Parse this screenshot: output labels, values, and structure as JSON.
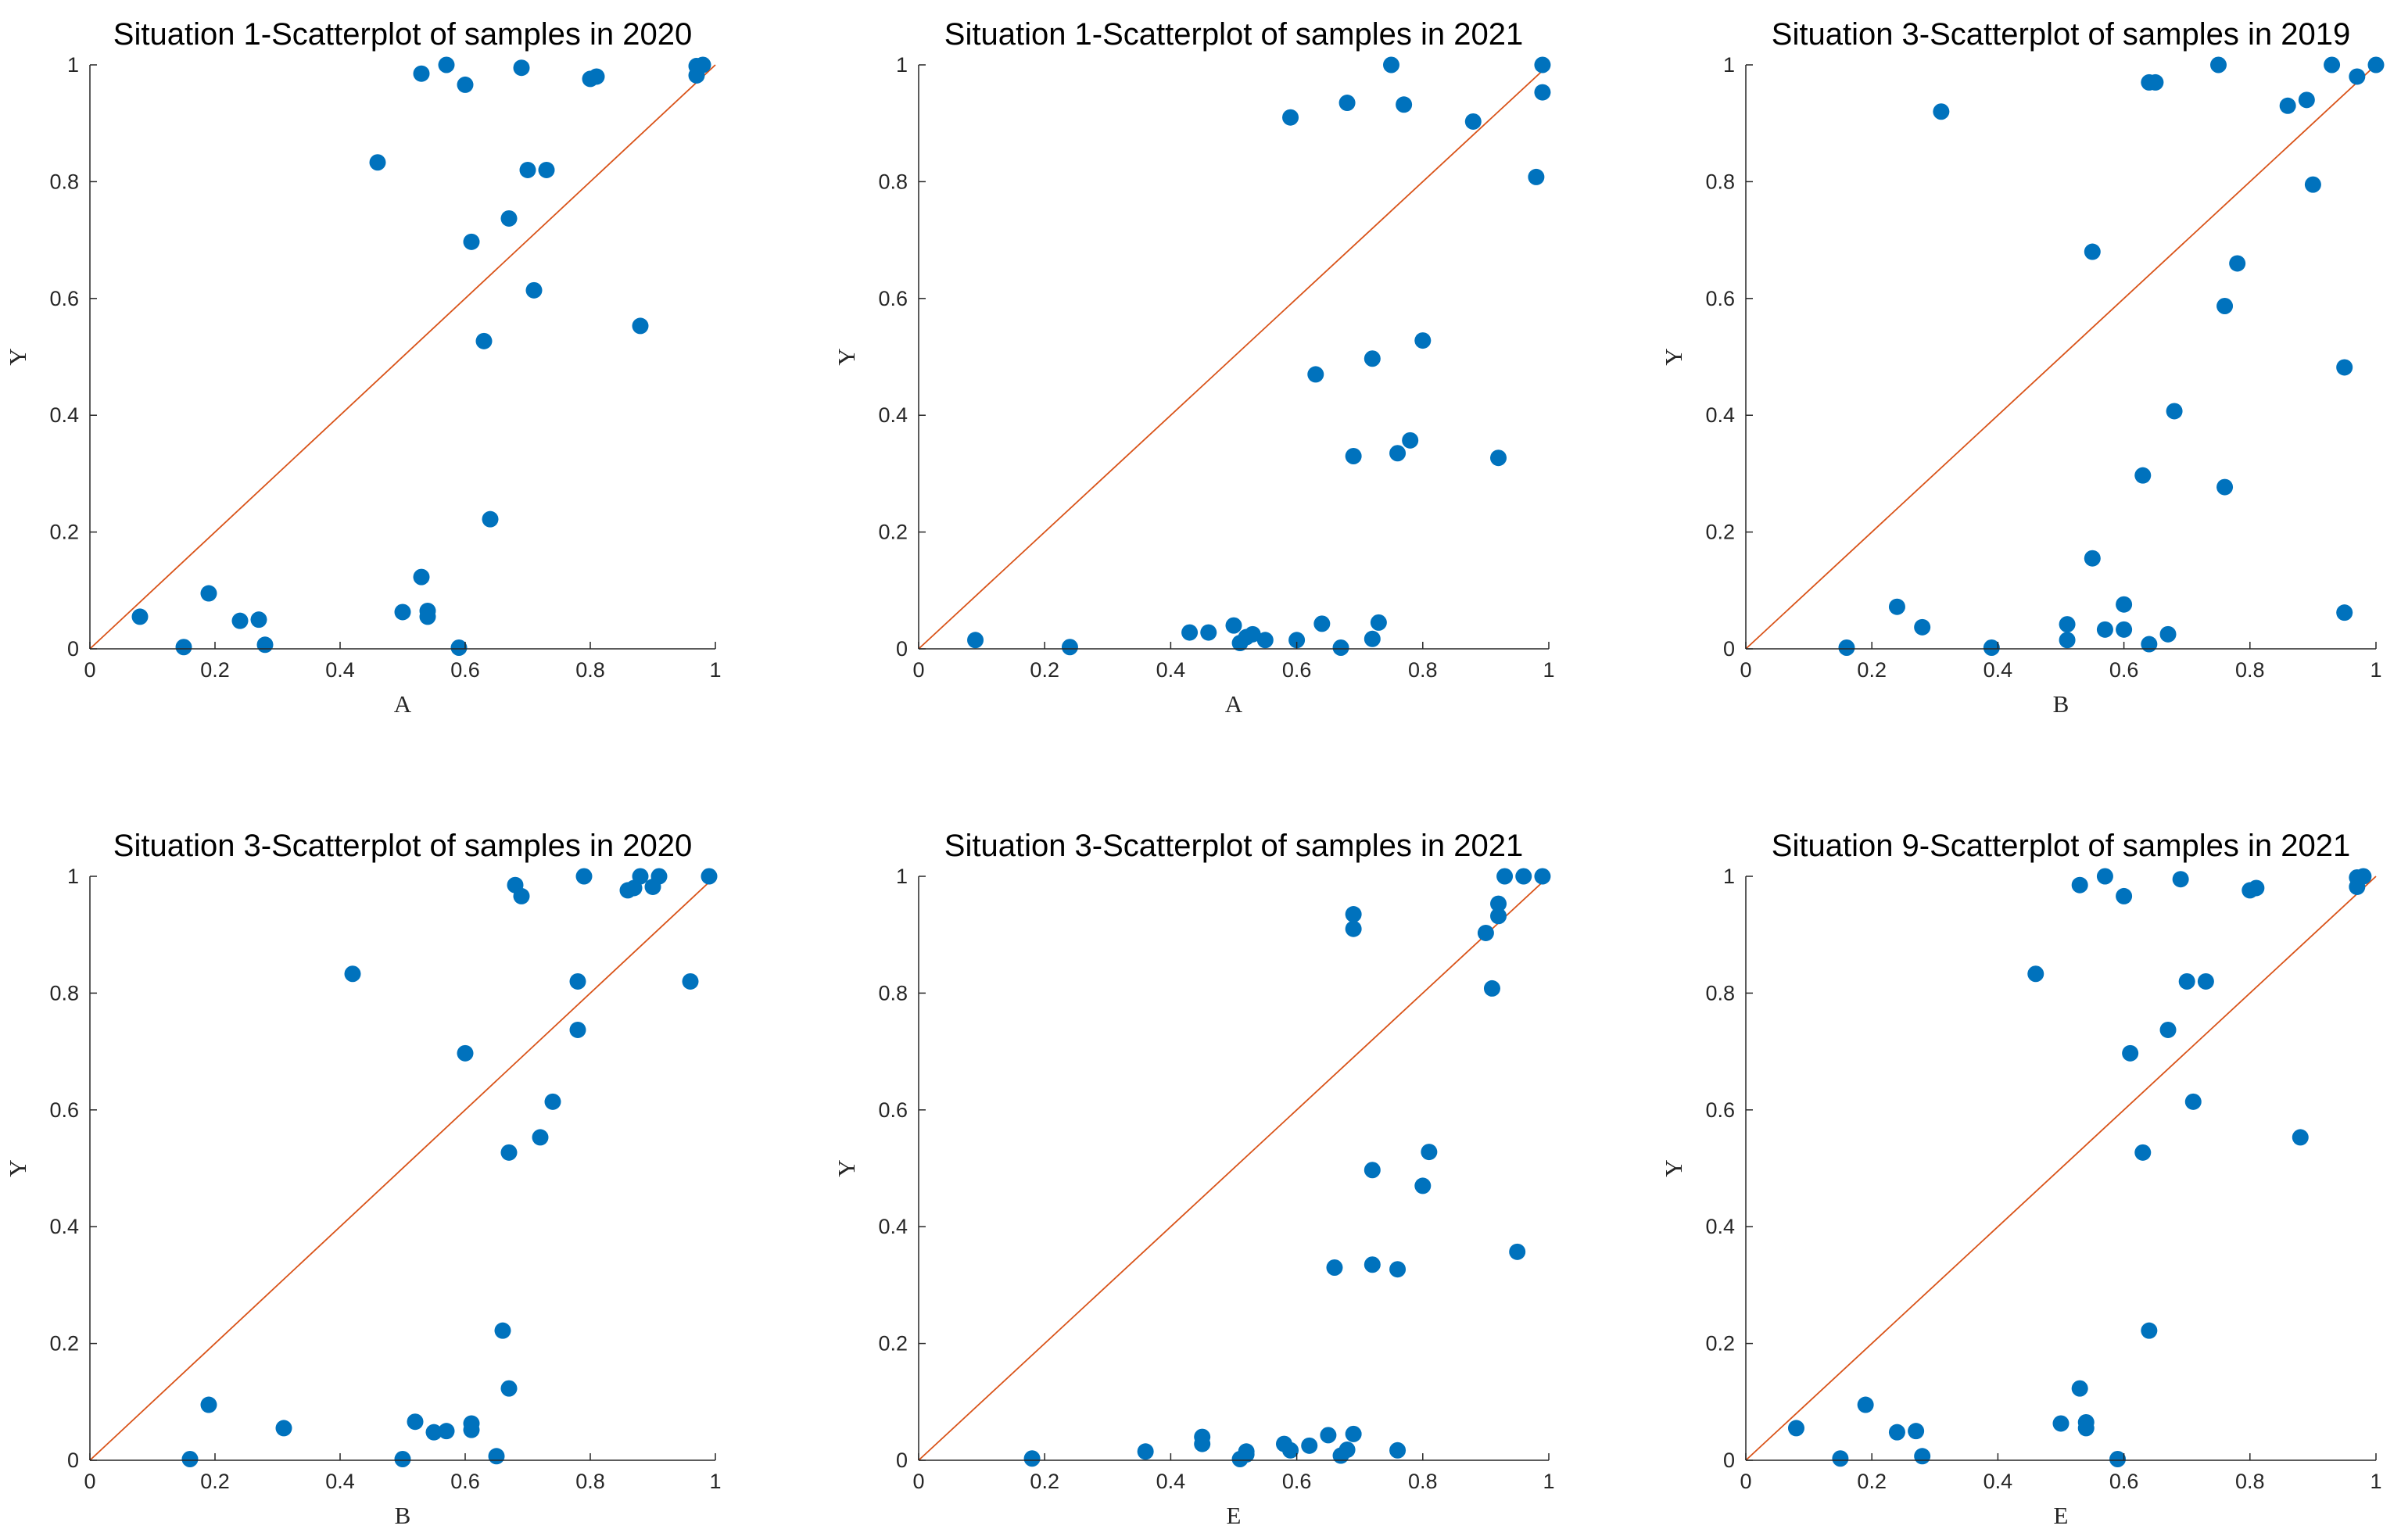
{
  "colors": {
    "points": "#0072BD",
    "reference_line": "#D95319",
    "axes": "#262626"
  },
  "chart_data": [
    {
      "type": "scatter",
      "title": "Situation 1-Scatterplot of samples in 2020",
      "xlabel": "A",
      "ylabel": "Y",
      "xlim": [
        0,
        1
      ],
      "ylim": [
        0,
        1
      ],
      "xticks": [
        "0",
        "0.2",
        "0.4",
        "0.6",
        "0.8",
        "1"
      ],
      "yticks": [
        "0",
        "0.2",
        "0.4",
        "0.6",
        "0.8",
        "1"
      ],
      "grid": false,
      "reference_line": "y = x",
      "points": [
        [
          0.08,
          0.055
        ],
        [
          0.15,
          0.003
        ],
        [
          0.19,
          0.095
        ],
        [
          0.24,
          0.048
        ],
        [
          0.27,
          0.05
        ],
        [
          0.28,
          0.007
        ],
        [
          0.46,
          0.833
        ],
        [
          0.5,
          0.063
        ],
        [
          0.53,
          0.985
        ],
        [
          0.53,
          0.123
        ],
        [
          0.54,
          0.065
        ],
        [
          0.54,
          0.055
        ],
        [
          0.57,
          1.0
        ],
        [
          0.59,
          0.002
        ],
        [
          0.6,
          0.966
        ],
        [
          0.61,
          0.697
        ],
        [
          0.63,
          0.527
        ],
        [
          0.64,
          0.222
        ],
        [
          0.67,
          0.737
        ],
        [
          0.69,
          0.995
        ],
        [
          0.7,
          0.82
        ],
        [
          0.71,
          0.614
        ],
        [
          0.73,
          0.82
        ],
        [
          0.8,
          0.976
        ],
        [
          0.81,
          0.98
        ],
        [
          0.88,
          0.553
        ],
        [
          0.97,
          0.982
        ],
        [
          0.97,
          0.998
        ],
        [
          0.98,
          1.0
        ]
      ]
    },
    {
      "type": "scatter",
      "title": "Situation 1-Scatterplot of samples in 2021",
      "xlabel": "A",
      "ylabel": "Y",
      "xlim": [
        0,
        1
      ],
      "ylim": [
        0,
        1
      ],
      "xticks": [
        "0",
        "0.2",
        "0.4",
        "0.6",
        "0.8",
        "1"
      ],
      "yticks": [
        "0",
        "0.2",
        "0.4",
        "0.6",
        "0.8",
        "1"
      ],
      "grid": false,
      "reference_line": "y = x",
      "points": [
        [
          0.09,
          0.015
        ],
        [
          0.24,
          0.003
        ],
        [
          0.43,
          0.028
        ],
        [
          0.46,
          0.028
        ],
        [
          0.5,
          0.04
        ],
        [
          0.51,
          0.01
        ],
        [
          0.52,
          0.02
        ],
        [
          0.53,
          0.025
        ],
        [
          0.55,
          0.015
        ],
        [
          0.59,
          0.91
        ],
        [
          0.6,
          0.015
        ],
        [
          0.63,
          0.47
        ],
        [
          0.64,
          0.043
        ],
        [
          0.67,
          0.002
        ],
        [
          0.68,
          0.935
        ],
        [
          0.69,
          0.33
        ],
        [
          0.72,
          0.497
        ],
        [
          0.72,
          0.017
        ],
        [
          0.73,
          0.045
        ],
        [
          0.75,
          1.0
        ],
        [
          0.76,
          0.335
        ],
        [
          0.77,
          0.932
        ],
        [
          0.78,
          0.357
        ],
        [
          0.8,
          0.528
        ],
        [
          0.88,
          0.903
        ],
        [
          0.92,
          0.327
        ],
        [
          0.98,
          0.808
        ],
        [
          0.99,
          1.0
        ],
        [
          0.99,
          0.953
        ]
      ]
    },
    {
      "type": "scatter",
      "title": "Situation 3-Scatterplot of samples in 2019",
      "xlabel": "B",
      "ylabel": "Y",
      "xlim": [
        0,
        1
      ],
      "ylim": [
        0,
        1
      ],
      "xticks": [
        "0",
        "0.2",
        "0.4",
        "0.6",
        "0.8",
        "1"
      ],
      "yticks": [
        "0",
        "0.2",
        "0.4",
        "0.6",
        "0.8",
        "1"
      ],
      "grid": false,
      "reference_line": "y = x",
      "points": [
        [
          0.16,
          0.002
        ],
        [
          0.24,
          0.072
        ],
        [
          0.28,
          0.037
        ],
        [
          0.31,
          0.92
        ],
        [
          0.39,
          0.002
        ],
        [
          0.51,
          0.015
        ],
        [
          0.51,
          0.042
        ],
        [
          0.55,
          0.155
        ],
        [
          0.55,
          0.68
        ],
        [
          0.57,
          0.033
        ],
        [
          0.6,
          0.076
        ],
        [
          0.6,
          0.033
        ],
        [
          0.63,
          0.297
        ],
        [
          0.64,
          0.97
        ],
        [
          0.64,
          0.008
        ],
        [
          0.65,
          0.97
        ],
        [
          0.67,
          0.025
        ],
        [
          0.68,
          0.407
        ],
        [
          0.75,
          1.0
        ],
        [
          0.76,
          0.277
        ],
        [
          0.76,
          0.587
        ],
        [
          0.78,
          0.66
        ],
        [
          0.86,
          0.93
        ],
        [
          0.89,
          0.94
        ],
        [
          0.9,
          0.795
        ],
        [
          0.93,
          1.0
        ],
        [
          0.95,
          0.482
        ],
        [
          0.95,
          0.062
        ],
        [
          0.97,
          0.98
        ],
        [
          1.0,
          1.0
        ]
      ]
    },
    {
      "type": "scatter",
      "title": "Situation 3-Scatterplot of samples in 2020",
      "xlabel": "B",
      "ylabel": "Y",
      "xlim": [
        0,
        1
      ],
      "ylim": [
        0,
        1
      ],
      "xticks": [
        "0",
        "0.2",
        "0.4",
        "0.6",
        "0.8",
        "1"
      ],
      "yticks": [
        "0",
        "0.2",
        "0.4",
        "0.6",
        "0.8",
        "1"
      ],
      "grid": false,
      "reference_line": "y = x",
      "points": [
        [
          0.16,
          0.002
        ],
        [
          0.19,
          0.095
        ],
        [
          0.31,
          0.055
        ],
        [
          0.42,
          0.833
        ],
        [
          0.5,
          0.002
        ],
        [
          0.52,
          0.066
        ],
        [
          0.55,
          0.048
        ],
        [
          0.57,
          0.05
        ],
        [
          0.6,
          0.697
        ],
        [
          0.61,
          0.063
        ],
        [
          0.61,
          0.052
        ],
        [
          0.65,
          0.007
        ],
        [
          0.66,
          0.222
        ],
        [
          0.67,
          0.123
        ],
        [
          0.67,
          0.527
        ],
        [
          0.68,
          0.985
        ],
        [
          0.69,
          0.966
        ],
        [
          0.72,
          0.553
        ],
        [
          0.74,
          0.614
        ],
        [
          0.78,
          0.82
        ],
        [
          0.78,
          0.737
        ],
        [
          0.79,
          1.0
        ],
        [
          0.86,
          0.976
        ],
        [
          0.87,
          0.98
        ],
        [
          0.88,
          1.0
        ],
        [
          0.9,
          0.982
        ],
        [
          0.91,
          1.0
        ],
        [
          0.96,
          0.82
        ],
        [
          0.99,
          1.0
        ]
      ]
    },
    {
      "type": "scatter",
      "title": "Situation 3-Scatterplot of samples in 2021",
      "xlabel": "E",
      "ylabel": "Y",
      "xlim": [
        0,
        1
      ],
      "ylim": [
        0,
        1
      ],
      "xticks": [
        "0",
        "0.2",
        "0.4",
        "0.6",
        "0.8",
        "1"
      ],
      "yticks": [
        "0",
        "0.2",
        "0.4",
        "0.6",
        "0.8",
        "1"
      ],
      "grid": false,
      "reference_line": "y = x",
      "points": [
        [
          0.18,
          0.003
        ],
        [
          0.36,
          0.015
        ],
        [
          0.45,
          0.04
        ],
        [
          0.45,
          0.028
        ],
        [
          0.51,
          0.002
        ],
        [
          0.52,
          0.01
        ],
        [
          0.52,
          0.015
        ],
        [
          0.58,
          0.028
        ],
        [
          0.59,
          0.017
        ],
        [
          0.62,
          0.025
        ],
        [
          0.65,
          0.043
        ],
        [
          0.66,
          0.33
        ],
        [
          0.67,
          0.008
        ],
        [
          0.68,
          0.018
        ],
        [
          0.69,
          0.935
        ],
        [
          0.69,
          0.91
        ],
        [
          0.69,
          0.045
        ],
        [
          0.72,
          0.335
        ],
        [
          0.72,
          0.497
        ],
        [
          0.76,
          0.327
        ],
        [
          0.76,
          0.017
        ],
        [
          0.8,
          0.47
        ],
        [
          0.81,
          0.528
        ],
        [
          0.9,
          0.903
        ],
        [
          0.91,
          0.808
        ],
        [
          0.92,
          0.953
        ],
        [
          0.92,
          0.932
        ],
        [
          0.93,
          1.0
        ],
        [
          0.95,
          0.357
        ],
        [
          0.96,
          1.0
        ],
        [
          0.99,
          1.0
        ]
      ]
    },
    {
      "type": "scatter",
      "title": "Situation 9-Scatterplot of samples in 2021",
      "xlabel": "E",
      "ylabel": "Y",
      "xlim": [
        0,
        1
      ],
      "ylim": [
        0,
        1
      ],
      "xticks": [
        "0",
        "0.2",
        "0.4",
        "0.6",
        "0.8",
        "1"
      ],
      "yticks": [
        "0",
        "0.2",
        "0.4",
        "0.6",
        "0.8",
        "1"
      ],
      "grid": false,
      "reference_line": "y = x",
      "points": [
        [
          0.08,
          0.055
        ],
        [
          0.15,
          0.003
        ],
        [
          0.19,
          0.095
        ],
        [
          0.24,
          0.048
        ],
        [
          0.27,
          0.05
        ],
        [
          0.28,
          0.007
        ],
        [
          0.46,
          0.833
        ],
        [
          0.5,
          0.063
        ],
        [
          0.53,
          0.985
        ],
        [
          0.53,
          0.123
        ],
        [
          0.54,
          0.065
        ],
        [
          0.54,
          0.055
        ],
        [
          0.57,
          1.0
        ],
        [
          0.59,
          0.002
        ],
        [
          0.6,
          0.966
        ],
        [
          0.61,
          0.697
        ],
        [
          0.63,
          0.527
        ],
        [
          0.64,
          0.222
        ],
        [
          0.67,
          0.737
        ],
        [
          0.69,
          0.995
        ],
        [
          0.7,
          0.82
        ],
        [
          0.71,
          0.614
        ],
        [
          0.73,
          0.82
        ],
        [
          0.8,
          0.976
        ],
        [
          0.81,
          0.98
        ],
        [
          0.88,
          0.553
        ],
        [
          0.97,
          0.982
        ],
        [
          0.97,
          0.998
        ],
        [
          0.98,
          1.0
        ]
      ]
    }
  ]
}
